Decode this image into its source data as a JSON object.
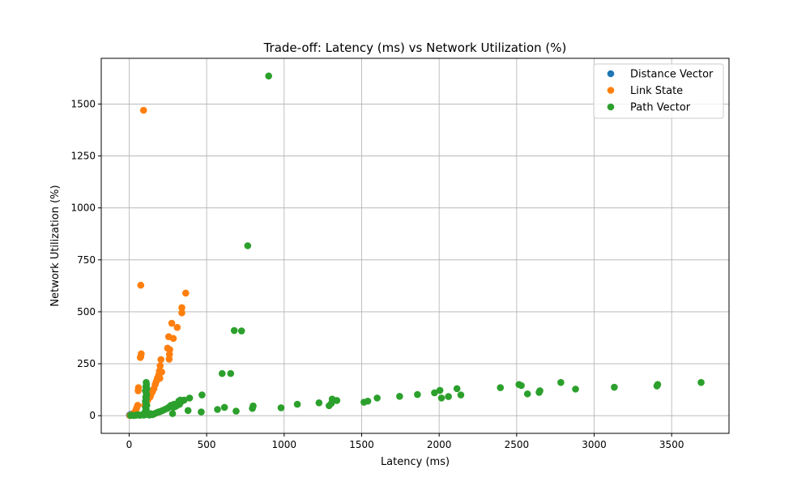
{
  "chart_data": {
    "type": "scatter",
    "title": "Trade-off: Latency (ms) vs Network Utilization (%)",
    "xlabel": "Latency (ms)",
    "ylabel": "Network Utilization (%)",
    "xlim": [
      -180,
      3870
    ],
    "ylim": [
      -85,
      1720
    ],
    "xticks": [
      0,
      500,
      1000,
      1500,
      2000,
      2500,
      3000,
      3500
    ],
    "yticks": [
      0,
      250,
      500,
      750,
      1000,
      1250,
      1500
    ],
    "grid": true,
    "legend_position": "top-right",
    "series": [
      {
        "name": "Distance Vector",
        "color": "#1f77b4",
        "points": [
          [
            2,
            2
          ],
          [
            5,
            4
          ],
          [
            8,
            3
          ],
          [
            10,
            6
          ],
          [
            12,
            2
          ],
          [
            15,
            5
          ],
          [
            18,
            8
          ],
          [
            20,
            4
          ],
          [
            22,
            7
          ],
          [
            25,
            3
          ]
        ]
      },
      {
        "name": "Link State",
        "color": "#ff7f0e",
        "points": [
          [
            93,
            1470
          ],
          [
            75,
            628
          ],
          [
            365,
            590
          ],
          [
            340,
            520
          ],
          [
            340,
            495
          ],
          [
            275,
            445
          ],
          [
            310,
            425
          ],
          [
            255,
            380
          ],
          [
            285,
            372
          ],
          [
            248,
            325
          ],
          [
            262,
            318
          ],
          [
            260,
            295
          ],
          [
            258,
            272
          ],
          [
            78,
            298
          ],
          [
            75,
            285
          ],
          [
            72,
            280
          ],
          [
            205,
            270
          ],
          [
            200,
            240
          ],
          [
            195,
            215
          ],
          [
            210,
            210
          ],
          [
            190,
            195
          ],
          [
            182,
            180
          ],
          [
            198,
            180
          ],
          [
            175,
            165
          ],
          [
            168,
            150
          ],
          [
            160,
            130
          ],
          [
            150,
            115
          ],
          [
            140,
            100
          ],
          [
            135,
            90
          ],
          [
            120,
            75
          ],
          [
            110,
            60
          ],
          [
            100,
            50
          ],
          [
            60,
            135
          ],
          [
            58,
            120
          ],
          [
            55,
            50
          ],
          [
            50,
            40
          ],
          [
            45,
            30
          ],
          [
            40,
            20
          ],
          [
            35,
            15
          ],
          [
            30,
            10
          ],
          [
            25,
            8
          ],
          [
            20,
            5
          ],
          [
            15,
            3
          ],
          [
            10,
            2
          ],
          [
            5,
            1
          ]
        ]
      },
      {
        "name": "Path Vector",
        "color": "#2ca02c",
        "points": [
          [
            900,
            1635
          ],
          [
            765,
            818
          ],
          [
            678,
            410
          ],
          [
            725,
            408
          ],
          [
            600,
            203
          ],
          [
            655,
            203
          ],
          [
            3690,
            160
          ],
          [
            3410,
            150
          ],
          [
            3405,
            143
          ],
          [
            3130,
            137
          ],
          [
            2880,
            128
          ],
          [
            2785,
            160
          ],
          [
            2650,
            120
          ],
          [
            2645,
            112
          ],
          [
            2570,
            105
          ],
          [
            2530,
            145
          ],
          [
            2515,
            150
          ],
          [
            2395,
            135
          ],
          [
            2140,
            100
          ],
          [
            2115,
            130
          ],
          [
            2060,
            92
          ],
          [
            2015,
            85
          ],
          [
            2005,
            122
          ],
          [
            1970,
            110
          ],
          [
            1860,
            102
          ],
          [
            1745,
            93
          ],
          [
            1600,
            85
          ],
          [
            1540,
            70
          ],
          [
            1515,
            65
          ],
          [
            1340,
            73
          ],
          [
            1310,
            80
          ],
          [
            1305,
            60
          ],
          [
            1290,
            48
          ],
          [
            1225,
            62
          ],
          [
            1085,
            55
          ],
          [
            980,
            38
          ],
          [
            800,
            47
          ],
          [
            795,
            35
          ],
          [
            690,
            22
          ],
          [
            615,
            40
          ],
          [
            570,
            30
          ],
          [
            465,
            18
          ],
          [
            470,
            100
          ],
          [
            390,
            85
          ],
          [
            380,
            25
          ],
          [
            355,
            75
          ],
          [
            340,
            70
          ],
          [
            330,
            75
          ],
          [
            325,
            55
          ],
          [
            320,
            70
          ],
          [
            310,
            50
          ],
          [
            300,
            45
          ],
          [
            290,
            55
          ],
          [
            285,
            40
          ],
          [
            280,
            10
          ],
          [
            270,
            50
          ],
          [
            265,
            45
          ],
          [
            255,
            40
          ],
          [
            245,
            35
          ],
          [
            230,
            30
          ],
          [
            215,
            25
          ],
          [
            200,
            20
          ],
          [
            190,
            18
          ],
          [
            180,
            15
          ],
          [
            170,
            12
          ],
          [
            160,
            8
          ],
          [
            150,
            5
          ],
          [
            140,
            10
          ],
          [
            130,
            3
          ],
          [
            110,
            160
          ],
          [
            112,
            150
          ],
          [
            108,
            140
          ],
          [
            115,
            130
          ],
          [
            105,
            120
          ],
          [
            110,
            110
          ],
          [
            113,
            100
          ],
          [
            107,
            90
          ],
          [
            111,
            80
          ],
          [
            105,
            70
          ],
          [
            109,
            60
          ],
          [
            114,
            50
          ],
          [
            106,
            40
          ],
          [
            110,
            30
          ],
          [
            104,
            20
          ],
          [
            112,
            15
          ],
          [
            108,
            10
          ],
          [
            103,
            5
          ],
          [
            95,
            3
          ],
          [
            85,
            5
          ],
          [
            70,
            2
          ],
          [
            60,
            4
          ],
          [
            50,
            3
          ],
          [
            40,
            2
          ],
          [
            30,
            1
          ],
          [
            20,
            2
          ],
          [
            10,
            1
          ]
        ]
      }
    ]
  }
}
